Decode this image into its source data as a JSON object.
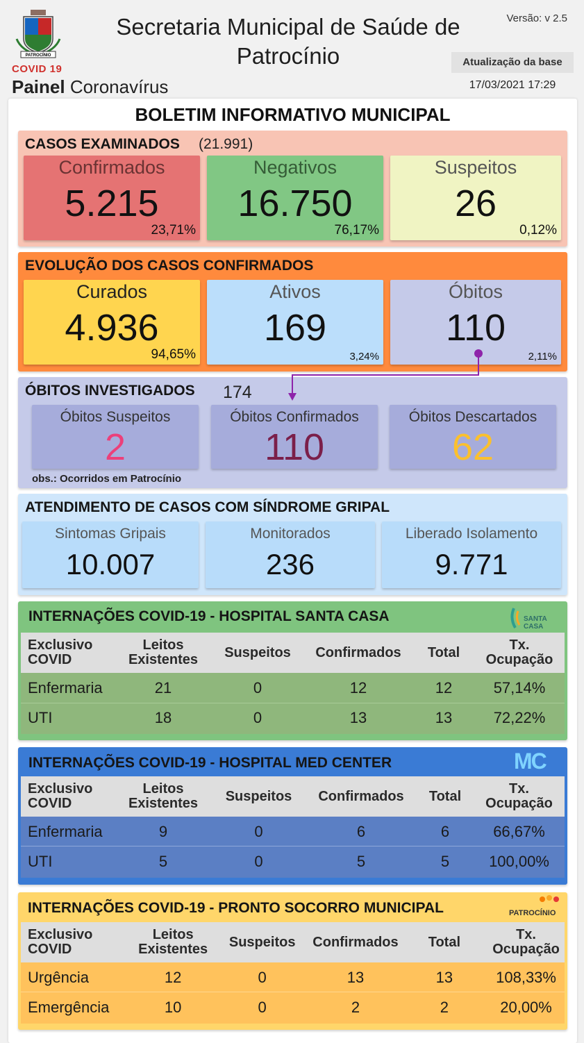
{
  "header": {
    "title": "Secretaria Municipal de Saúde de Patrocínio",
    "version": "Versão: v 2.5",
    "update_label": "Atualização da base",
    "update_date": "17/03/2021 17:29",
    "covid_label": "COVID 19",
    "painel_bold": "Painel",
    "painel_rest": " Coronavírus",
    "logo_text": "PATROCÍNIO"
  },
  "bulletin_title": "BOLETIM INFORMATIVO MUNICIPAL",
  "examinados": {
    "title": "CASOS EXAMINADOS",
    "total": "(21.991)",
    "boxes": [
      {
        "label": "Confirmados",
        "value": "5.215",
        "pct": "23,71%"
      },
      {
        "label": "Negativos",
        "value": "16.750",
        "pct": "76,17%"
      },
      {
        "label": "Suspeitos",
        "value": "26",
        "pct": "0,12%"
      }
    ]
  },
  "evolucao": {
    "title": "EVOLUÇÃO DOS CASOS CONFIRMADOS",
    "boxes": [
      {
        "label": "Curados",
        "value": "4.936",
        "pct": "94,65%"
      },
      {
        "label": "Ativos",
        "value": "169",
        "pct": "3,24%"
      },
      {
        "label": "Óbitos",
        "value": "110",
        "pct": "2,11%"
      }
    ]
  },
  "obitos": {
    "title": "ÓBITOS INVESTIGADOS",
    "total": "174",
    "note": "obs.: Ocorridos em Patrocínio",
    "boxes": [
      {
        "label": "Óbitos Suspeitos",
        "value": "2"
      },
      {
        "label": "Óbitos Confirmados",
        "value": "110"
      },
      {
        "label": "Óbitos Descartados",
        "value": "62"
      }
    ]
  },
  "sindrome": {
    "title": "ATENDIMENTO DE CASOS COM SÍNDROME GRIPAL",
    "boxes": [
      {
        "label": "Sintomas Gripais",
        "value": "10.007"
      },
      {
        "label": "Monitorados",
        "value": "236"
      },
      {
        "label": "Liberado Isolamento",
        "value": "9.771"
      }
    ]
  },
  "table_headers": {
    "col1a": "Exclusivo",
    "col1b": "COVID",
    "col2a": "Leitos",
    "col2b": "Existentes",
    "col3": "Suspeitos",
    "col4": "Confirmados",
    "col5": "Total",
    "col6a": "Tx.",
    "col6b": "Ocupação"
  },
  "santa_casa": {
    "title": "INTERNAÇÕES COVID-19 - HOSPITAL SANTA CASA",
    "logo_text": "SANTA CASA",
    "rows": [
      {
        "name": "Enfermaria",
        "leitos": "21",
        "suspeitos": "0",
        "confirmados": "12",
        "total": "12",
        "taxa": "57,14%"
      },
      {
        "name": "UTI",
        "leitos": "18",
        "suspeitos": "0",
        "confirmados": "13",
        "total": "13",
        "taxa": "72,22%"
      }
    ]
  },
  "med_center": {
    "title": "INTERNAÇÕES COVID-19 - HOSPITAL MED CENTER",
    "logo_text": "MC",
    "rows": [
      {
        "name": "Enfermaria",
        "leitos": "9",
        "suspeitos": "0",
        "confirmados": "6",
        "total": "6",
        "taxa": "66,67%"
      },
      {
        "name": "UTI",
        "leitos": "5",
        "suspeitos": "0",
        "confirmados": "5",
        "total": "5",
        "taxa": "100,00%"
      }
    ]
  },
  "pronto_socorro": {
    "title": "INTERNAÇÕES COVID-19 - PRONTO SOCORRO MUNICIPAL",
    "logo_text": "PATROCÍNIO",
    "rows": [
      {
        "name": "Urgência",
        "leitos": "12",
        "suspeitos": "0",
        "confirmados": "13",
        "total": "13",
        "taxa": "108,33%"
      },
      {
        "name": "Emergência",
        "leitos": "10",
        "suspeitos": "0",
        "confirmados": "2",
        "total": "2",
        "taxa": "20,00%"
      }
    ]
  },
  "colors": {
    "confirmados": "#e57373",
    "negativos": "#81c784",
    "suspeitos": "#f0f4c3",
    "curados": "#ffd54f",
    "ativos": "#bbdefb",
    "obitos": "#c5cae9",
    "obito_suspeito_num": "#ec407a",
    "obito_confirmado_num": "#7b1f4a",
    "obito_descartado_num": "#fbc02d",
    "arrow": "#8e24aa"
  }
}
